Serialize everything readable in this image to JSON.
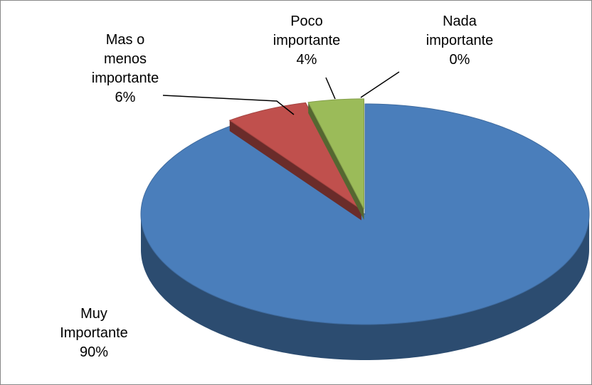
{
  "chart_data": {
    "type": "pie",
    "categories": [
      "Muy\nImportante",
      "Mas o\nmenos\nimportante",
      "Poco\nimportante",
      "Nada\nimportante"
    ],
    "values": [
      90,
      6,
      4,
      0
    ],
    "value_labels": [
      "90%",
      "6%",
      "4%",
      "0%"
    ],
    "colors": [
      "#4a7ebb",
      "#c0504d",
      "#9bbb59",
      "#8064a2"
    ]
  }
}
